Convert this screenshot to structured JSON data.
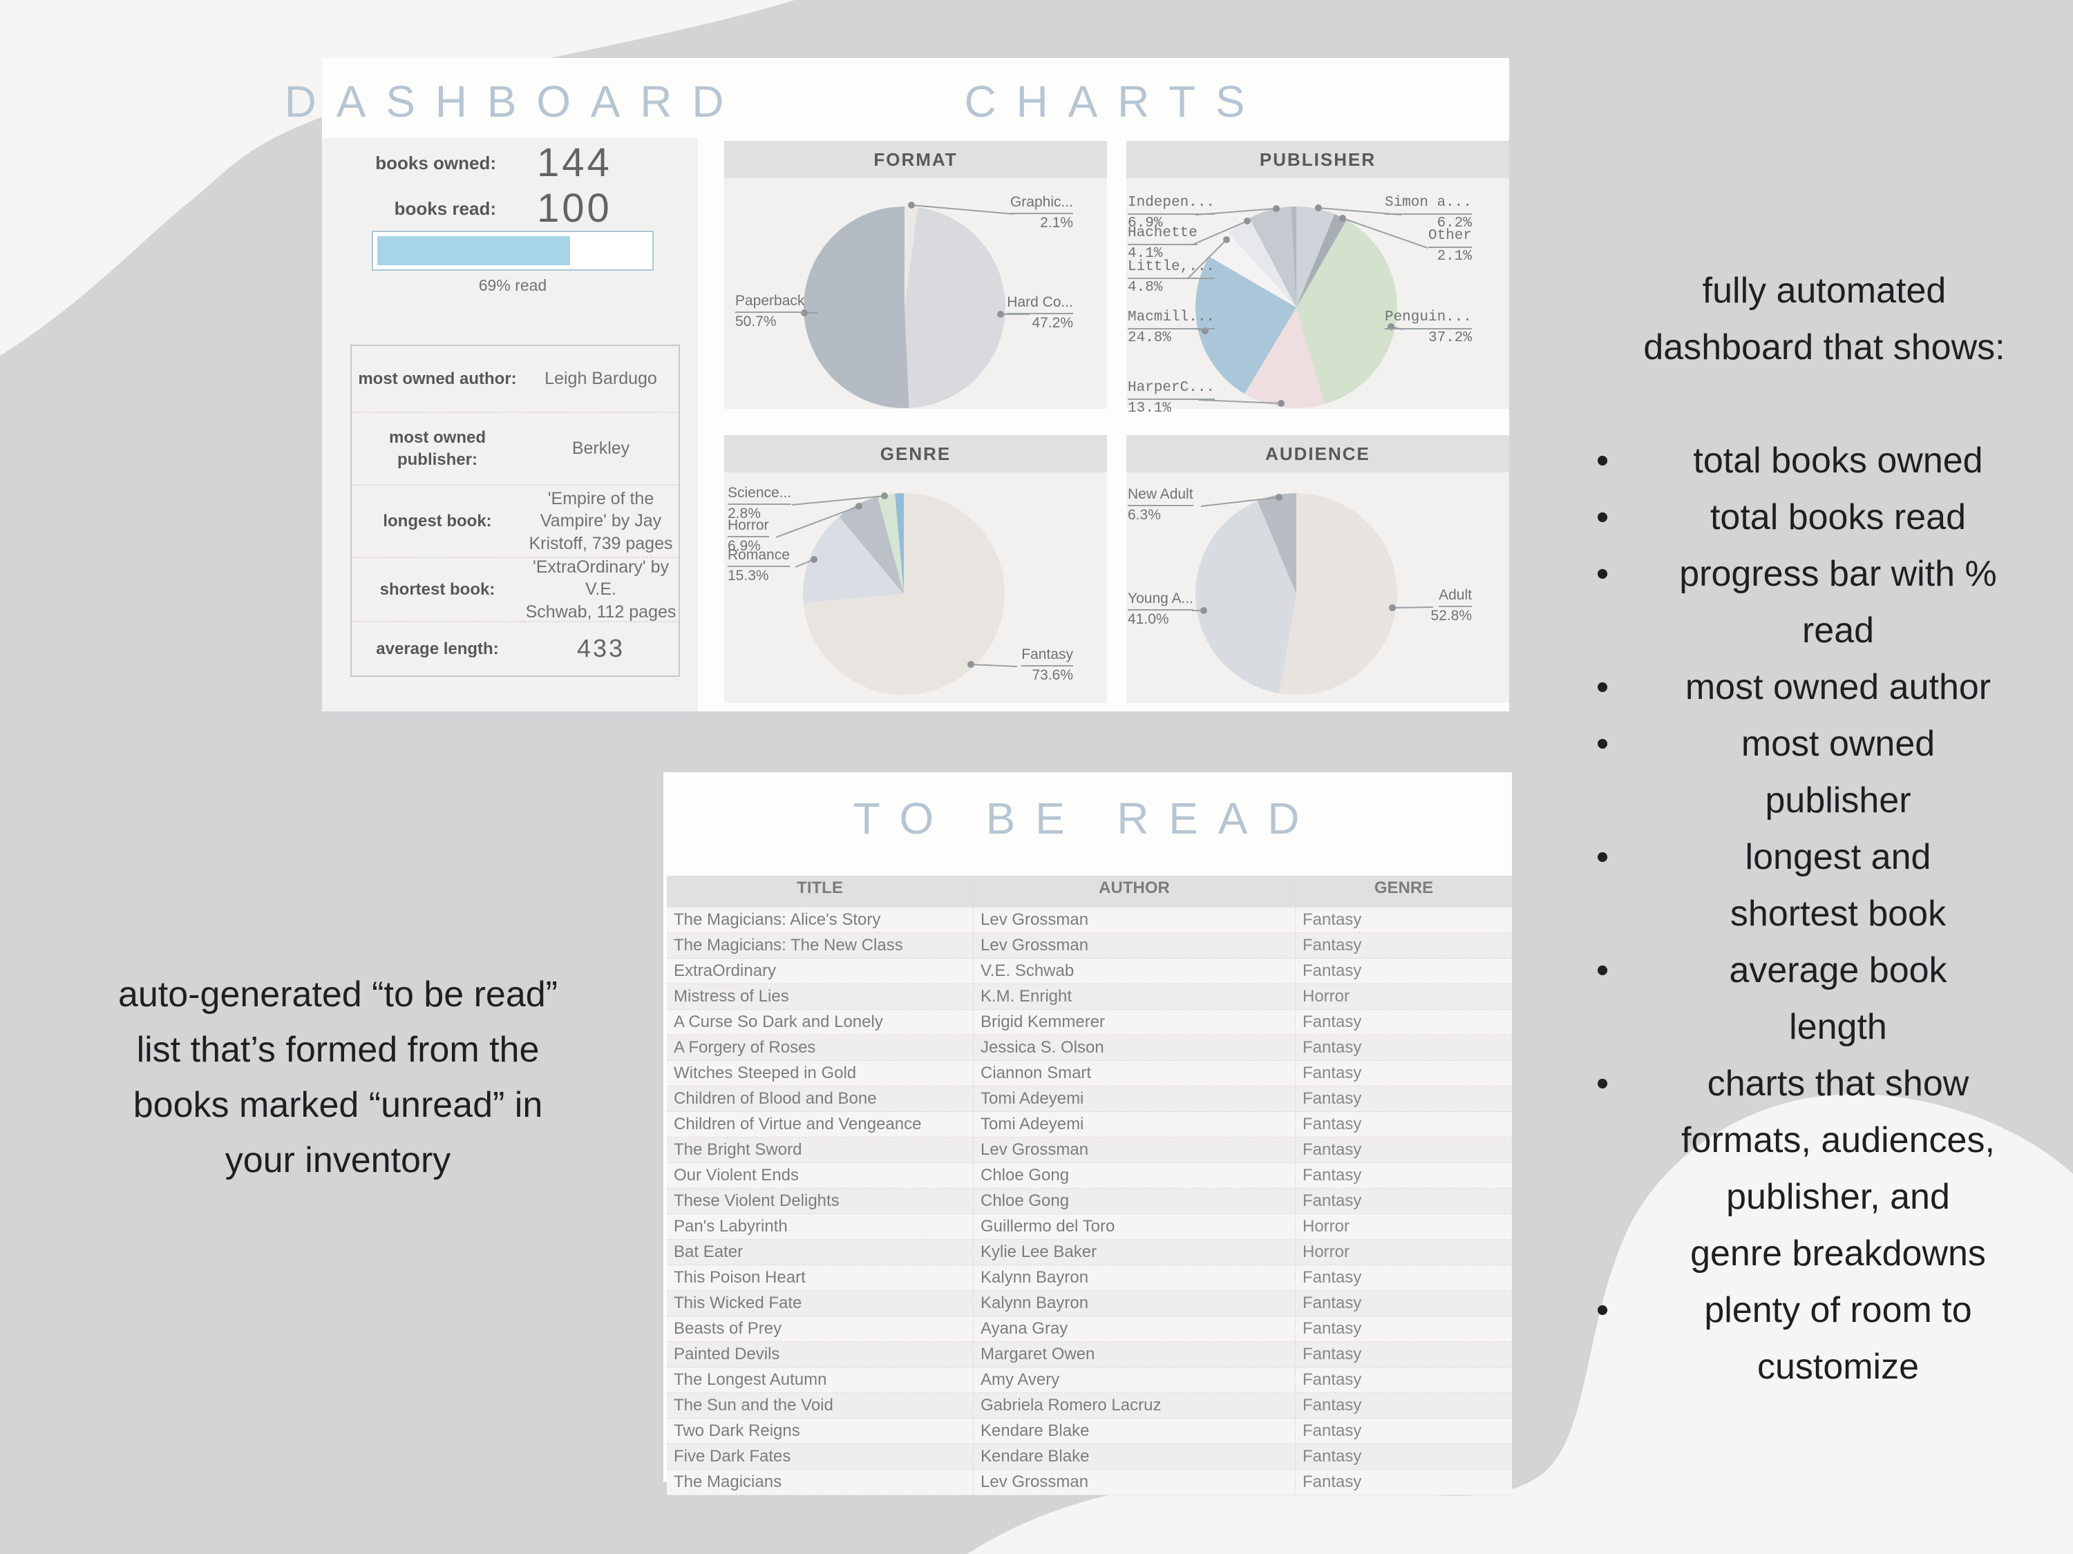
{
  "colors": {
    "background": "#d2d4d6",
    "blob": "#f6f5f3",
    "panel": "#fdfdfc",
    "stats_bg": "#f3f1ef",
    "header_strip": "#e2e0df",
    "title_blue": "#b6c5d2",
    "accent_blue": "#a7d4e6",
    "leader_line": "#9aa0a4"
  },
  "dashboard": {
    "title": "DASHBOARD",
    "charts_title": "CHARTS",
    "books_owned": {
      "label": "books owned:",
      "value": "144"
    },
    "books_read": {
      "label": "books read:",
      "value": "100"
    },
    "progress": {
      "pct": 69,
      "caption": "69% read"
    },
    "details": [
      {
        "label": "most owned author:",
        "value": "Leigh Bardugo"
      },
      {
        "label": "most owned\npublisher:",
        "value": "Berkley"
      },
      {
        "label": "longest book:",
        "value": "'Empire of the\nVampire' by Jay\nKristoff,  739 pages"
      },
      {
        "label": "shortest book:",
        "value": "'ExtraOrdinary' by V.E.\nSchwab,  112 pages"
      },
      {
        "label": "average length:",
        "value": "433"
      }
    ]
  },
  "chart_data": [
    {
      "id": "format",
      "type": "pie",
      "title": "FORMAT",
      "slices": [
        {
          "label": "Graphic...",
          "pct_label": "2.1%",
          "value": 2.1,
          "color": "#ece8e6"
        },
        {
          "label": "Hard Co...",
          "pct_label": "47.2%",
          "value": 47.2,
          "color": "#d8dade"
        },
        {
          "label": "Paperback",
          "pct_label": "50.7%",
          "value": 50.7,
          "color": "#b5bbc2"
        }
      ]
    },
    {
      "id": "publisher",
      "type": "pie",
      "title": "PUBLISHER",
      "mono_labels": true,
      "slices": [
        {
          "label": "Simon a...",
          "pct_label": "6.2%",
          "value": 6.2,
          "color": "#ced3da"
        },
        {
          "label": "Other",
          "pct_label": "2.1%",
          "value": 2.1,
          "color": "#a9aeb4"
        },
        {
          "label": "Penguin...",
          "pct_label": "37.2%",
          "value": 37.2,
          "color": "#d3e1cd"
        },
        {
          "label": "HarperC...",
          "pct_label": "13.1%",
          "value": 13.1,
          "color": "#eedee0"
        },
        {
          "label": "Macmill...",
          "pct_label": "24.8%",
          "value": 24.8,
          "color": "#aac7d9"
        },
        {
          "label": "Little,...",
          "pct_label": "4.8%",
          "value": 4.8,
          "color": "#f4f2f3"
        },
        {
          "label": "Hachette",
          "pct_label": "4.1%",
          "value": 4.1,
          "color": "#e6e8eb"
        },
        {
          "label": "Indepen...",
          "pct_label": "6.9%",
          "value": 6.9,
          "color": "#c5cad0"
        },
        {
          "label": "",
          "pct_label": "",
          "value": 0.8,
          "color": "#b2b8bf"
        }
      ]
    },
    {
      "id": "genre",
      "type": "pie",
      "title": "GENRE",
      "slices": [
        {
          "label": "Fantasy",
          "pct_label": "73.6%",
          "value": 73.6,
          "color": "#e8e5e1"
        },
        {
          "label": "Romance",
          "pct_label": "15.3%",
          "value": 15.3,
          "color": "#dadee4"
        },
        {
          "label": "Horror",
          "pct_label": "6.9%",
          "value": 6.9,
          "color": "#bcc1c7"
        },
        {
          "label": "Science...",
          "pct_label": "2.8%",
          "value": 2.8,
          "color": "#d6e5d3"
        },
        {
          "label": "",
          "pct_label": "",
          "value": 1.4,
          "color": "#93bcd9"
        }
      ]
    },
    {
      "id": "audience",
      "type": "pie",
      "title": "AUDIENCE",
      "slices": [
        {
          "label": "Adult",
          "pct_label": "52.8%",
          "value": 52.8,
          "color": "#e7e4e0"
        },
        {
          "label": "Young A...",
          "pct_label": "41.0%",
          "value": 41.0,
          "color": "#d8dbdf"
        },
        {
          "label": "New Adult",
          "pct_label": "6.3%",
          "value": 6.3,
          "color": "#b7bdc3"
        }
      ]
    }
  ],
  "tbr": {
    "title": "TO BE READ",
    "columns": [
      "TITLE",
      "AUTHOR",
      "GENRE"
    ],
    "rows": [
      [
        "The Magicians: Alice's Story",
        "Lev Grossman",
        "Fantasy"
      ],
      [
        "The Magicians: The New Class",
        "Lev Grossman",
        "Fantasy"
      ],
      [
        "ExtraOrdinary",
        "V.E. Schwab",
        "Fantasy"
      ],
      [
        "Mistress of Lies",
        "K.M. Enright",
        "Horror"
      ],
      [
        "A Curse So Dark and Lonely",
        "Brigid Kemmerer",
        "Fantasy"
      ],
      [
        "A Forgery of Roses",
        "Jessica S. Olson",
        "Fantasy"
      ],
      [
        "Witches Steeped in Gold",
        "Ciannon Smart",
        "Fantasy"
      ],
      [
        "Children of Blood and Bone",
        "Tomi Adeyemi",
        "Fantasy"
      ],
      [
        "Children of Virtue and Vengeance",
        "Tomi Adeyemi",
        "Fantasy"
      ],
      [
        "The Bright Sword",
        "Lev Grossman",
        "Fantasy"
      ],
      [
        "Our Violent Ends",
        "Chloe Gong",
        "Fantasy"
      ],
      [
        "These Violent Delights",
        "Chloe Gong",
        "Fantasy"
      ],
      [
        "Pan's Labyrinth",
        "Guillermo del Toro",
        "Horror"
      ],
      [
        "Bat Eater",
        "Kylie Lee Baker",
        "Horror"
      ],
      [
        "This Poison Heart",
        "Kalynn Bayron",
        "Fantasy"
      ],
      [
        "This Wicked Fate",
        "Kalynn Bayron",
        "Fantasy"
      ],
      [
        "Beasts of Prey",
        "Ayana Gray",
        "Fantasy"
      ],
      [
        "Painted Devils",
        "Margaret Owen",
        "Fantasy"
      ],
      [
        "The Longest Autumn",
        "Amy Avery",
        "Fantasy"
      ],
      [
        "The Sun and the Void",
        "Gabriela Romero Lacruz",
        "Fantasy"
      ],
      [
        "Two Dark Reigns",
        "Kendare Blake",
        "Fantasy"
      ],
      [
        "Five Dark Fates",
        "Kendare Blake",
        "Fantasy"
      ],
      [
        "The Magicians",
        "Lev Grossman",
        "Fantasy"
      ]
    ]
  },
  "left_note": "auto-generated “to be read”\nlist that’s formed from the\nbooks marked “unread” in\nyour inventory",
  "right_note": {
    "heading": "fully automated\ndashboard that shows:",
    "bullets": [
      "total books owned",
      "total books read",
      "progress bar with %\nread",
      "most owned author",
      "most owned\npublisher",
      "longest and\nshortest book",
      "average book\nlength",
      "charts that show\nformats, audiences,\npublisher, and\ngenre breakdowns",
      "plenty of room to\ncustomize"
    ]
  }
}
